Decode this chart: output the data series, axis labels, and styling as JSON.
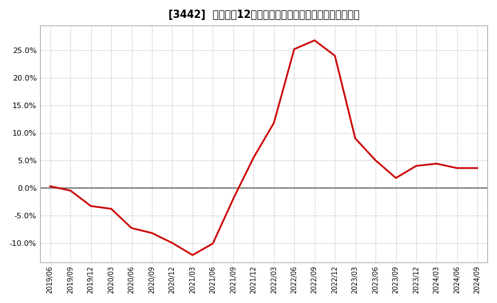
{
  "title": "[3442]  売上高の12か月移動合計の対前年同期増減率の推移",
  "line_color": "#cc0000",
  "line_width": 1.8,
  "background_color": "#ffffff",
  "plot_bg_color": "#ffffff",
  "grid_color": "#999999",
  "zero_line_color": "#666666",
  "ylim": [
    -0.135,
    0.295
  ],
  "yticks": [
    -0.1,
    -0.05,
    0.0,
    0.05,
    0.1,
    0.15,
    0.2,
    0.25
  ],
  "dates": [
    "2019/06",
    "2019/09",
    "2019/12",
    "2020/03",
    "2020/06",
    "2020/09",
    "2020/12",
    "2021/03",
    "2021/06",
    "2021/09",
    "2021/12",
    "2022/03",
    "2022/06",
    "2022/09",
    "2022/12",
    "2023/03",
    "2023/06",
    "2023/09",
    "2023/12",
    "2024/03",
    "2024/06",
    "2024/09"
  ],
  "values": [
    0.003,
    -0.005,
    -0.033,
    -0.038,
    -0.073,
    -0.082,
    -0.1,
    -0.122,
    -0.101,
    -0.02,
    0.055,
    0.118,
    0.252,
    0.268,
    0.24,
    0.09,
    0.05,
    0.018,
    0.04,
    0.044,
    0.036,
    0.036
  ]
}
